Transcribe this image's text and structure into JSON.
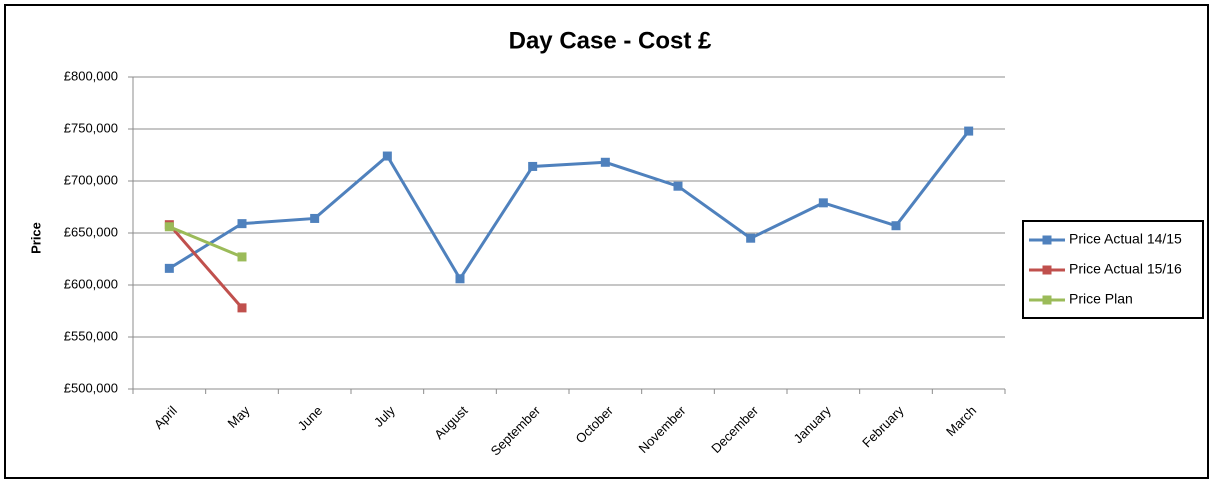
{
  "chart_data": {
    "type": "line",
    "title": "Day Case - Cost £",
    "y_label": "Price",
    "categories": [
      "April",
      "May",
      "June",
      "July",
      "August",
      "September",
      "October",
      "November",
      "December",
      "January",
      "February",
      "March"
    ],
    "series": [
      {
        "name": "Price Actual 14/15",
        "color": "#4f81bd",
        "values": [
          616000,
          659000,
          664000,
          724000,
          606000,
          714000,
          718000,
          695000,
          645000,
          679000,
          657000,
          748000
        ]
      },
      {
        "name": "Price Actual 15/16",
        "color": "#c0504d",
        "values": [
          658000,
          578000,
          null,
          null,
          null,
          null,
          null,
          null,
          null,
          null,
          null,
          null
        ]
      },
      {
        "name": "Price Plan",
        "color": "#9bbb59",
        "values": [
          656000,
          627000,
          null,
          null,
          null,
          null,
          null,
          null,
          null,
          null,
          null,
          null
        ]
      }
    ],
    "ylim": [
      500000,
      800000
    ],
    "yticks": [
      {
        "value": 500000,
        "label": "£500,000"
      },
      {
        "value": 550000,
        "label": "£550,000"
      },
      {
        "value": 600000,
        "label": "£600,000"
      },
      {
        "value": 650000,
        "label": "£650,000"
      },
      {
        "value": 700000,
        "label": "£700,000"
      },
      {
        "value": 750000,
        "label": "£750,000"
      },
      {
        "value": 800000,
        "label": "£800,000"
      }
    ],
    "grid": true,
    "legend": "right"
  }
}
